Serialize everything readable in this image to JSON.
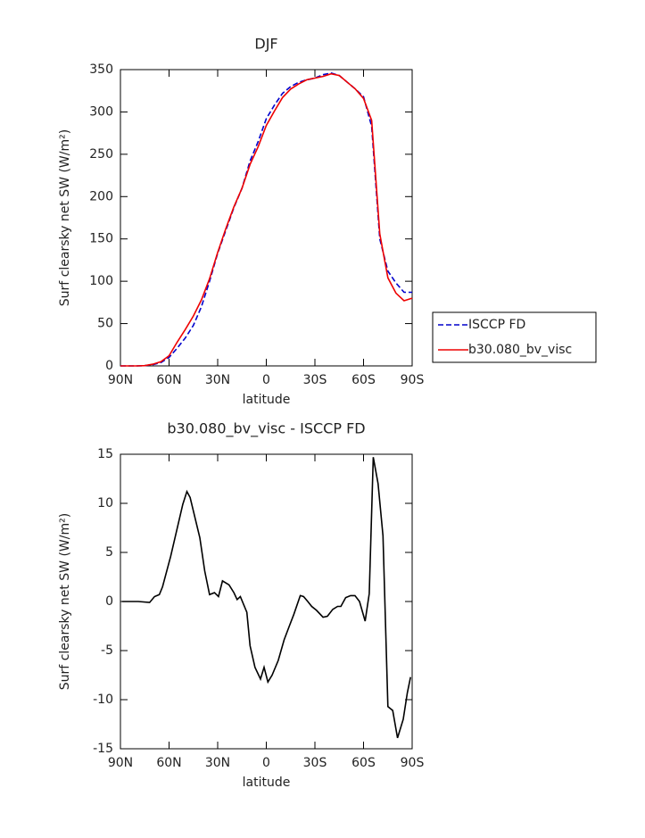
{
  "chart_data": [
    {
      "type": "line",
      "title": "DJF",
      "xlabel": "latitude",
      "ylabel": "Surf clearsky net SW (W/m²)",
      "x": [
        90,
        85,
        80,
        75,
        70,
        65,
        60,
        55,
        50,
        45,
        40,
        35,
        30,
        25,
        20,
        15,
        10,
        5,
        0,
        -5,
        -10,
        -15,
        -20,
        -25,
        -30,
        -35,
        -40,
        -45,
        -50,
        -55,
        -60,
        -65,
        -70,
        -75,
        -80,
        -85,
        -90
      ],
      "series": [
        {
          "name": "ISCCP FD",
          "color": "#0000cc",
          "style": "dashed",
          "values": [
            0,
            0,
            0,
            0.3,
            1.5,
            4,
            10,
            21,
            33,
            48,
            70,
            100,
            133,
            160,
            187,
            210,
            242,
            265,
            292,
            308,
            322,
            330,
            335,
            338,
            340,
            344,
            346,
            343,
            335,
            327,
            318,
            283,
            150,
            112,
            98,
            87,
            87
          ]
        },
        {
          "name": "b30.080_bv_visc",
          "color": "#ee0000",
          "style": "solid",
          "values": [
            0,
            0,
            0,
            0.3,
            2,
            5,
            12,
            28,
            43,
            59,
            78,
            103,
            134,
            162,
            188,
            210,
            238,
            259,
            284,
            301,
            317,
            327,
            333,
            338,
            340,
            342,
            345,
            343,
            335,
            327,
            316,
            290,
            156,
            104,
            86,
            77,
            80
          ]
        }
      ],
      "xlim": [
        90,
        -90
      ],
      "xticks": [
        {
          "value": 90,
          "label": "90N"
        },
        {
          "value": 60,
          "label": "60N"
        },
        {
          "value": 30,
          "label": "30N"
        },
        0,
        {
          "value": -30,
          "label": "30S"
        },
        {
          "value": -60,
          "label": "60S"
        },
        {
          "value": -90,
          "label": "90S"
        }
      ],
      "ylim": [
        0,
        350
      ],
      "yticks": [
        0,
        50,
        100,
        150,
        200,
        250,
        300,
        350
      ],
      "legend": "right"
    },
    {
      "type": "line",
      "title": "b30.080_bv_visc - ISCCP FD",
      "xlabel": "latitude",
      "ylabel": "Surf clearsky net SW (W/m²)",
      "x": [
        89,
        79,
        72,
        69,
        66,
        64,
        59,
        51.5,
        49,
        47,
        41,
        38,
        35,
        32,
        29.5,
        27,
        23,
        20,
        18,
        16,
        12,
        10,
        7,
        3.6,
        1.4,
        -1,
        -3.6,
        -7.4,
        -11,
        -14,
        -17,
        -21,
        -23,
        -25.6,
        -28,
        -31,
        -35,
        -37.7,
        -41,
        -44,
        -46,
        -49,
        -52,
        -54.7,
        -57.5,
        -61,
        -63.5,
        -66,
        -69,
        -72,
        -75,
        -78,
        -81,
        -84.5,
        -87,
        -89
      ],
      "series": [
        {
          "name": "b30.080_bv_visc - ISCCP FD",
          "color": "#000000",
          "style": "solid",
          "values": [
            0,
            0,
            -0.1,
            0.5,
            0.7,
            1.5,
            4.6,
            9.9,
            11.2,
            10.6,
            6.5,
            3.1,
            0.7,
            0.9,
            0.5,
            2.1,
            1.7,
            0.9,
            0.2,
            0.5,
            -1.1,
            -4.5,
            -6.7,
            -7.9,
            -6.7,
            -8.2,
            -7.5,
            -6.0,
            -3.9,
            -2.6,
            -1.3,
            0.6,
            0.5,
            0,
            -0.5,
            -0.9,
            -1.6,
            -1.5,
            -0.8,
            -0.5,
            -0.5,
            0.4,
            0.6,
            0.6,
            0,
            -2,
            0.8,
            14.7,
            12.0,
            6.7,
            -10.7,
            -11.1,
            -13.9,
            -12,
            -9.3,
            -7.7
          ]
        }
      ],
      "xlim": [
        90,
        -90
      ],
      "xticks": [
        {
          "value": 90,
          "label": "90N"
        },
        {
          "value": 60,
          "label": "60N"
        },
        {
          "value": 30,
          "label": "30N"
        },
        0,
        {
          "value": -30,
          "label": "30S"
        },
        {
          "value": -60,
          "label": "60S"
        },
        {
          "value": -90,
          "label": "90S"
        }
      ],
      "ylim": [
        -15,
        15
      ],
      "yticks": [
        -15,
        -10,
        -5,
        0,
        5,
        10,
        15
      ]
    }
  ]
}
